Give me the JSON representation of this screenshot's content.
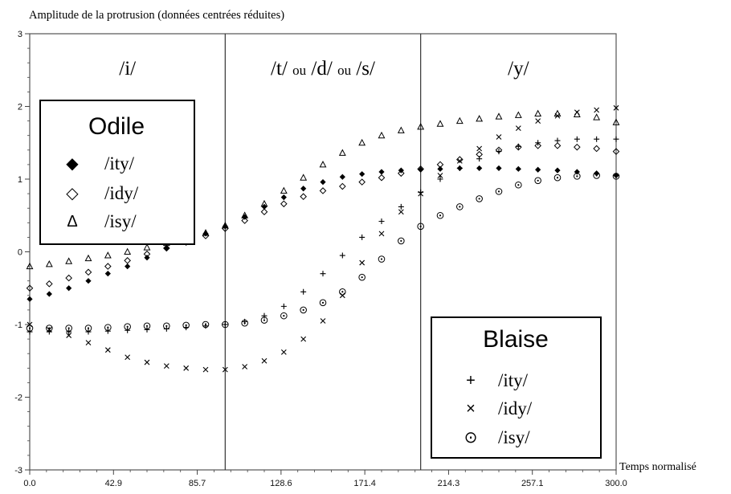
{
  "chart_data": {
    "type": "scatter",
    "ylabel": "Amplitude de la protrusion (données centrées réduites)",
    "xlabel": "Temps normalisé",
    "xlim": [
      0,
      300
    ],
    "ylim": [
      -3,
      3
    ],
    "x_ticks": [
      "0.0",
      "42.9",
      "85.7",
      "128.6",
      "171.4",
      "214.3",
      "257.1",
      "300.0"
    ],
    "y_ticks": [
      "-3",
      "-2",
      "-1",
      "0",
      "1",
      "2",
      "3"
    ],
    "grid": false,
    "phase_boundaries": [
      100,
      200
    ],
    "phases": [
      {
        "parts": [
          "/",
          "i",
          "/"
        ]
      },
      {
        "parts": [
          "/",
          "t",
          "/ ",
          "ou",
          " /",
          "d",
          "/ ",
          "ou",
          " /",
          "s",
          "/"
        ]
      },
      {
        "parts": [
          "/",
          "y",
          "/"
        ]
      }
    ],
    "legends": [
      {
        "title": "Odile",
        "placement": "top-left",
        "entries": [
          {
            "symbol": "◆",
            "label": "/ity/",
            "series": "odile_ity"
          },
          {
            "symbol": "◇",
            "label": "/idy/",
            "series": "odile_idy"
          },
          {
            "symbol": "Δ",
            "label": "/isy/",
            "series": "odile_isy"
          }
        ]
      },
      {
        "title": "Blaise",
        "placement": "bottom-right",
        "entries": [
          {
            "symbol": "+",
            "label": "/ity/",
            "series": "blaise_ity"
          },
          {
            "symbol": "×",
            "label": "/idy/",
            "series": "blaise_idy"
          },
          {
            "symbol": "⊙",
            "label": "/isy/",
            "series": "blaise_isy"
          }
        ]
      }
    ],
    "x": [
      0,
      10,
      20,
      30,
      40,
      50,
      60,
      70,
      80,
      90,
      100,
      110,
      120,
      130,
      140,
      150,
      160,
      170,
      180,
      190,
      200,
      210,
      220,
      230,
      240,
      250,
      260,
      270,
      280,
      290,
      300
    ],
    "series": [
      {
        "key": "odile_ity",
        "marker": "diamond",
        "values": [
          -0.65,
          -0.58,
          -0.5,
          -0.4,
          -0.3,
          -0.2,
          -0.08,
          0.05,
          0.15,
          0.25,
          0.35,
          0.48,
          0.62,
          0.75,
          0.87,
          0.96,
          1.03,
          1.07,
          1.1,
          1.12,
          1.13,
          1.14,
          1.15,
          1.15,
          1.15,
          1.14,
          1.13,
          1.12,
          1.1,
          1.08,
          1.05
        ]
      },
      {
        "key": "odile_idy",
        "marker": "diamond-open",
        "values": [
          -0.5,
          -0.44,
          -0.36,
          -0.28,
          -0.2,
          -0.12,
          -0.03,
          0.05,
          0.13,
          0.22,
          0.32,
          0.43,
          0.55,
          0.66,
          0.76,
          0.84,
          0.9,
          0.96,
          1.02,
          1.08,
          1.14,
          1.2,
          1.27,
          1.34,
          1.4,
          1.44,
          1.46,
          1.46,
          1.44,
          1.42,
          1.38
        ]
      },
      {
        "key": "odile_isy",
        "marker": "triangle",
        "values": [
          -0.2,
          -0.17,
          -0.13,
          -0.09,
          -0.05,
          0.0,
          0.06,
          0.12,
          0.18,
          0.26,
          0.36,
          0.5,
          0.66,
          0.84,
          1.02,
          1.2,
          1.36,
          1.5,
          1.6,
          1.67,
          1.72,
          1.76,
          1.8,
          1.83,
          1.86,
          1.88,
          1.9,
          1.9,
          1.89,
          1.85,
          1.78
        ]
      },
      {
        "key": "blaise_ity",
        "marker": "plus",
        "values": [
          -1.1,
          -1.1,
          -1.1,
          -1.1,
          -1.09,
          -1.08,
          -1.07,
          -1.06,
          -1.04,
          -1.02,
          -1.0,
          -0.96,
          -0.88,
          -0.75,
          -0.55,
          -0.3,
          -0.05,
          0.2,
          0.42,
          0.62,
          0.82,
          1.0,
          1.15,
          1.28,
          1.38,
          1.45,
          1.5,
          1.53,
          1.55,
          1.55,
          1.55
        ]
      },
      {
        "key": "blaise_idy",
        "marker": "cross",
        "values": [
          -1.0,
          -1.07,
          -1.15,
          -1.25,
          -1.35,
          -1.45,
          -1.52,
          -1.57,
          -1.6,
          -1.62,
          -1.62,
          -1.58,
          -1.5,
          -1.38,
          -1.2,
          -0.95,
          -0.6,
          -0.15,
          0.25,
          0.55,
          0.8,
          1.05,
          1.25,
          1.42,
          1.58,
          1.7,
          1.8,
          1.87,
          1.92,
          1.95,
          1.98
        ]
      },
      {
        "key": "blaise_isy",
        "marker": "circle-dot",
        "values": [
          -1.05,
          -1.05,
          -1.05,
          -1.05,
          -1.04,
          -1.03,
          -1.02,
          -1.02,
          -1.01,
          -1.0,
          -1.0,
          -0.98,
          -0.94,
          -0.88,
          -0.8,
          -0.7,
          -0.55,
          -0.35,
          -0.1,
          0.15,
          0.35,
          0.5,
          0.62,
          0.73,
          0.83,
          0.92,
          0.98,
          1.02,
          1.04,
          1.05,
          1.04
        ]
      }
    ]
  }
}
